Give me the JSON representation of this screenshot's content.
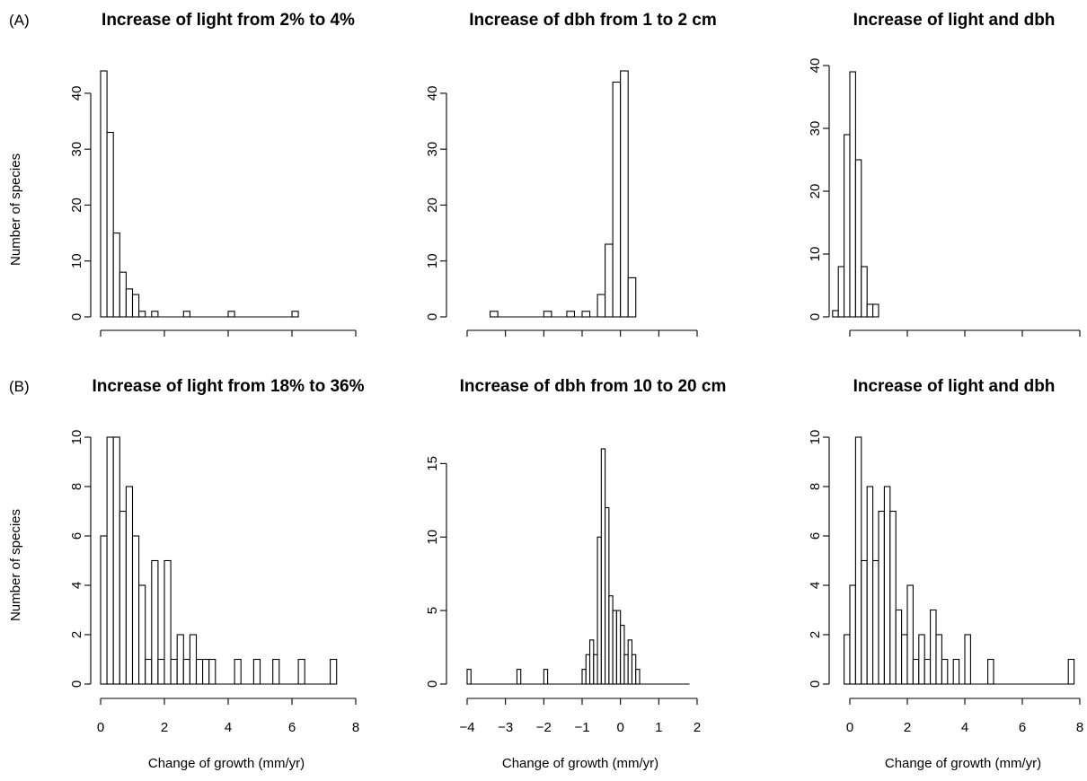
{
  "row_labels": [
    "(A)",
    "(B)"
  ],
  "chart_data": [
    {
      "type": "bar",
      "title": "Increase of light from 2% to 4%",
      "xlabel": "",
      "ylabel": "Number of species",
      "xlim": [
        0,
        8
      ],
      "ylim": [
        0,
        44
      ],
      "xticks": [
        0,
        2,
        4,
        6,
        8
      ],
      "xtick_labels": [],
      "yticks": [
        0,
        10,
        20,
        30,
        40
      ],
      "bin_width": 0.2,
      "bin_starts": [
        0,
        0.2,
        0.4,
        0.6,
        0.8,
        1.0,
        1.2,
        1.4,
        1.6,
        1.8,
        2.0,
        2.2,
        2.4,
        2.6,
        2.8,
        3.0,
        3.2,
        3.4,
        3.6,
        3.8,
        4.0,
        4.2,
        4.4,
        4.6,
        4.8,
        5.0,
        5.2,
        5.4,
        5.6,
        5.8,
        6.0
      ],
      "values": [
        44,
        33,
        15,
        8,
        5,
        4,
        1,
        0,
        1,
        0,
        0,
        0,
        0,
        1,
        0,
        0,
        0,
        0,
        0,
        0,
        1,
        0,
        0,
        0,
        0,
        0,
        0,
        0,
        0,
        0,
        1
      ]
    },
    {
      "type": "bar",
      "title": "Increase of dbh from 1 to 2 cm",
      "xlabel": "",
      "ylabel": "",
      "xlim": [
        -4,
        2
      ],
      "ylim": [
        0,
        44
      ],
      "xticks": [
        -4,
        -3,
        -2,
        -1,
        0,
        1,
        2
      ],
      "xtick_labels": [],
      "yticks": [
        0,
        10,
        20,
        30,
        40
      ],
      "bin_width": 0.2,
      "bin_starts": [
        -3.4,
        -3.2,
        -3.0,
        -2.8,
        -2.6,
        -2.4,
        -2.2,
        -2.0,
        -1.8,
        -1.6,
        -1.4,
        -1.2,
        -1.0,
        -0.8,
        -0.6,
        -0.4,
        -0.2,
        0.0,
        0.2
      ],
      "values": [
        1,
        0,
        0,
        0,
        0,
        0,
        0,
        1,
        0,
        0,
        1,
        0,
        1,
        0,
        4,
        13,
        42,
        44,
        7
      ]
    },
    {
      "type": "bar",
      "title": "Increase of light and dbh",
      "xlabel": "",
      "ylabel": "",
      "xlim": [
        0,
        8
      ],
      "ylim": [
        0,
        40
      ],
      "xticks": [
        0,
        2,
        4,
        6,
        8
      ],
      "xtick_labels": [],
      "yticks": [
        0,
        10,
        20,
        30,
        40
      ],
      "bin_width": 0.2,
      "bin_starts": [
        -0.6,
        -0.4,
        -0.2,
        0.0,
        0.2,
        0.4,
        0.6,
        0.8
      ],
      "values": [
        1,
        8,
        29,
        39,
        25,
        8,
        2,
        2
      ]
    },
    {
      "type": "bar",
      "title": "Increase of light from 18% to 36%",
      "xlabel": "Change of growth (mm/yr)",
      "ylabel": "Number of species",
      "xlim": [
        0,
        8
      ],
      "ylim": [
        0,
        10
      ],
      "xticks": [
        0,
        2,
        4,
        6,
        8
      ],
      "xtick_labels": [
        "0",
        "2",
        "4",
        "6",
        "8"
      ],
      "yticks": [
        0,
        2,
        4,
        6,
        8,
        10
      ],
      "bin_width": 0.2,
      "bin_starts": [
        0,
        0.2,
        0.4,
        0.6,
        0.8,
        1.0,
        1.2,
        1.4,
        1.6,
        1.8,
        2.0,
        2.2,
        2.4,
        2.6,
        2.8,
        3.0,
        3.2,
        3.4,
        3.6,
        3.8,
        4.0,
        4.2,
        4.4,
        4.6,
        4.8,
        5.0,
        5.2,
        5.4,
        5.6,
        5.8,
        6.0,
        6.2,
        6.4,
        6.6,
        6.8,
        7.0,
        7.2
      ],
      "values": [
        6,
        10,
        10,
        7,
        8,
        6,
        4,
        1,
        5,
        1,
        5,
        1,
        2,
        1,
        2,
        1,
        1,
        1,
        0,
        0,
        0,
        1,
        0,
        0,
        1,
        0,
        0,
        1,
        0,
        0,
        0,
        1,
        0,
        0,
        0,
        0,
        1
      ]
    },
    {
      "type": "bar",
      "title": "Increase of dbh from 10 to 20 cm",
      "xlabel": "Change of growth (mm/yr)",
      "ylabel": "",
      "xlim": [
        -4,
        2
      ],
      "ylim": [
        0,
        16
      ],
      "xticks": [
        -4,
        -3,
        -2,
        -1,
        0,
        1,
        2
      ],
      "xtick_labels": [
        "−4",
        "−3",
        "−2",
        "−1",
        "0",
        "1",
        "2"
      ],
      "yticks": [
        0,
        5,
        10,
        15
      ],
      "bin_width": 0.1,
      "bin_starts": [
        -4.0,
        -3.9,
        -3.8,
        -3.7,
        -3.6,
        -3.5,
        -3.4,
        -3.3,
        -3.2,
        -3.1,
        -3.0,
        -2.9,
        -2.8,
        -2.7,
        -2.6,
        -2.5,
        -2.4,
        -2.3,
        -2.2,
        -2.1,
        -2.0,
        -1.9,
        -1.8,
        -1.7,
        -1.6,
        -1.5,
        -1.4,
        -1.3,
        -1.2,
        -1.1,
        -1.0,
        -0.9,
        -0.8,
        -0.7,
        -0.6,
        -0.5,
        -0.4,
        -0.3,
        -0.2,
        -0.1,
        0.0,
        0.1,
        0.2,
        0.3,
        0.4,
        0.5,
        0.6,
        0.7,
        0.8,
        0.9,
        1.0,
        1.1,
        1.2,
        1.3,
        1.4,
        1.5,
        1.6,
        1.7
      ],
      "values": [
        1,
        0,
        0,
        0,
        0,
        0,
        0,
        0,
        0,
        0,
        0,
        0,
        0,
        1,
        0,
        0,
        0,
        0,
        0,
        0,
        1,
        0,
        0,
        0,
        0,
        0,
        0,
        0,
        0,
        0,
        1,
        2,
        3,
        2,
        10,
        16,
        12,
        6,
        5,
        5,
        4,
        2,
        3,
        2,
        1,
        0,
        0,
        0,
        0,
        0,
        0,
        0,
        0,
        0,
        0,
        0,
        0,
        0
      ]
    },
    {
      "type": "bar",
      "title": "Increase of light and dbh",
      "xlabel": "Change of growth (mm/yr)",
      "ylabel": "",
      "xlim": [
        0,
        8
      ],
      "ylim": [
        0,
        10
      ],
      "xticks": [
        0,
        2,
        4,
        6,
        8
      ],
      "xtick_labels": [
        "0",
        "2",
        "4",
        "6",
        "8"
      ],
      "yticks": [
        0,
        2,
        4,
        6,
        8,
        10
      ],
      "bin_width": 0.2,
      "bin_starts": [
        -0.2,
        0.0,
        0.2,
        0.4,
        0.6,
        0.8,
        1.0,
        1.2,
        1.4,
        1.6,
        1.8,
        2.0,
        2.2,
        2.4,
        2.6,
        2.8,
        3.0,
        3.2,
        3.4,
        3.6,
        3.8,
        4.0,
        4.2,
        4.4,
        4.6,
        4.8,
        5.0,
        5.2,
        5.4,
        5.6,
        5.8,
        6.0,
        6.2,
        6.4,
        6.6,
        6.8,
        7.0,
        7.2,
        7.4,
        7.6
      ],
      "values": [
        2,
        4,
        10,
        5,
        8,
        5,
        7,
        8,
        7,
        3,
        2,
        4,
        1,
        2,
        1,
        3,
        2,
        1,
        0,
        1,
        0,
        2,
        0,
        0,
        0,
        1,
        0,
        0,
        0,
        0,
        0,
        0,
        0,
        0,
        0,
        0,
        0,
        0,
        0,
        1
      ]
    }
  ]
}
